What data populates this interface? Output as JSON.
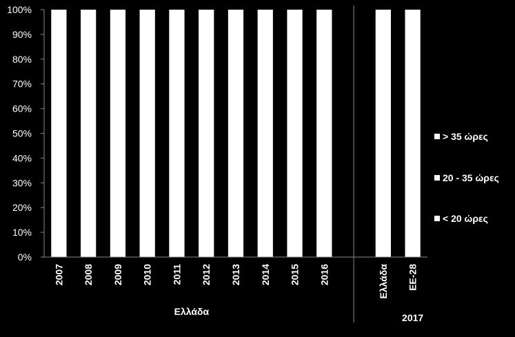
{
  "chart_data": {
    "type": "bar",
    "stacked": true,
    "percent": true,
    "categories": [
      "2007",
      "2008",
      "2009",
      "2010",
      "2011",
      "2012",
      "2013",
      "2014",
      "2015",
      "2016",
      "Ελλάδα",
      "ΕΕ-28"
    ],
    "groups": [
      {
        "label": "Ελλάδα",
        "categories": [
          "2007",
          "2008",
          "2009",
          "2010",
          "2011",
          "2012",
          "2013",
          "2014",
          "2015",
          "2016"
        ]
      },
      {
        "label": "2017",
        "categories": [
          "Ελλάδα",
          "ΕΕ-28"
        ]
      }
    ],
    "series": [
      {
        "name": "> 35 ώρες",
        "color": "#ffffff",
        "values": [
          100,
          100,
          100,
          100,
          100,
          100,
          100,
          100,
          100,
          100,
          100,
          100
        ]
      },
      {
        "name": "20 - 35 ώρες",
        "color": "#ffffff",
        "values": [
          0,
          0,
          0,
          0,
          0,
          0,
          0,
          0,
          0,
          0,
          0,
          0
        ]
      },
      {
        "name": "< 20 ώρες",
        "color": "#ffffff",
        "values": [
          0,
          0,
          0,
          0,
          0,
          0,
          0,
          0,
          0,
          0,
          0,
          0
        ]
      }
    ],
    "yticks": [
      "0%",
      "10%",
      "20%",
      "30%",
      "40%",
      "50%",
      "60%",
      "70%",
      "80%",
      "90%",
      "100%"
    ],
    "ylim": [
      0,
      100
    ],
    "grid": false,
    "legend_position": "right"
  }
}
